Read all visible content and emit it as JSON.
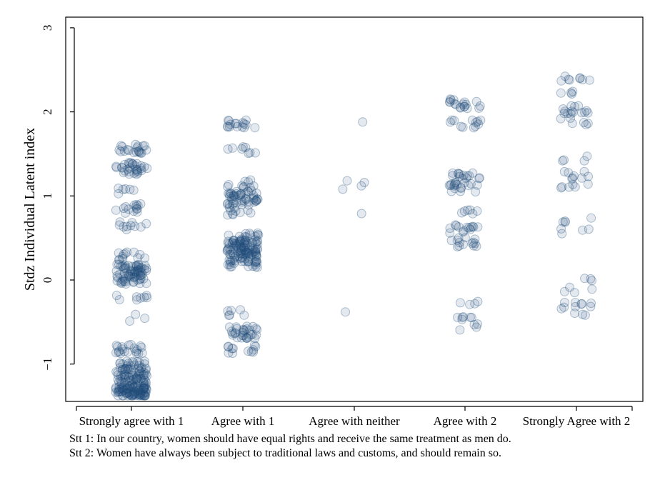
{
  "chart_data": {
    "type": "scatter",
    "subtype": "jittered strip plot",
    "title": "",
    "xlabel": "",
    "ylabel": "Stdz Individual Latent index",
    "categories": [
      "Strongly agree with 1",
      "Agree with 1",
      "Agree with neither",
      "Agree with 2",
      "Strongly Agree with 2"
    ],
    "yticks": [
      -1,
      0,
      1,
      2,
      3
    ],
    "ylim": [
      -1.45,
      3.1
    ],
    "grid": false,
    "legend": "none",
    "marker_color": "#1f4e79",
    "marker_style": "hollow circles, semi-transparent",
    "clusters": [
      {
        "category": "Strongly agree with 1",
        "points": [
          [
            1.55,
            20
          ],
          [
            1.33,
            30
          ],
          [
            1.05,
            6
          ],
          [
            0.85,
            14
          ],
          [
            0.65,
            10
          ],
          [
            0.28,
            12
          ],
          [
            0.07,
            70
          ],
          [
            -0.2,
            8
          ],
          [
            -0.45,
            3
          ],
          [
            -0.82,
            20
          ],
          [
            -1.05,
            45
          ],
          [
            -1.25,
            70
          ],
          [
            -1.33,
            50
          ]
        ]
      },
      {
        "category": "Agree with 1",
        "points": [
          [
            1.85,
            16
          ],
          [
            1.55,
            8
          ],
          [
            1.15,
            10
          ],
          [
            0.98,
            45
          ],
          [
            0.82,
            10
          ],
          [
            0.5,
            20
          ],
          [
            0.34,
            95
          ],
          [
            0.18,
            12
          ],
          [
            -0.38,
            6
          ],
          [
            -0.62,
            30
          ],
          [
            -0.82,
            12
          ]
        ]
      },
      {
        "category": "Agree with neither",
        "points": [
          [
            1.88,
            1
          ],
          [
            1.18,
            1
          ],
          [
            1.16,
            1
          ],
          [
            1.12,
            1
          ],
          [
            1.08,
            1
          ],
          [
            0.79,
            1
          ],
          [
            -0.38,
            1
          ]
        ]
      },
      {
        "category": "Agree with 2",
        "points": [
          [
            2.1,
            18
          ],
          [
            1.85,
            12
          ],
          [
            1.25,
            14
          ],
          [
            1.1,
            18
          ],
          [
            0.8,
            6
          ],
          [
            0.6,
            14
          ],
          [
            0.45,
            14
          ],
          [
            -0.3,
            4
          ],
          [
            -0.45,
            6
          ],
          [
            -0.55,
            4
          ]
        ]
      },
      {
        "category": "Strongly Agree with 2",
        "points": [
          [
            2.4,
            8
          ],
          [
            2.2,
            4
          ],
          [
            2.02,
            14
          ],
          [
            1.88,
            6
          ],
          [
            1.45,
            4
          ],
          [
            1.25,
            8
          ],
          [
            1.1,
            6
          ],
          [
            0.72,
            4
          ],
          [
            0.58,
            4
          ],
          [
            0.0,
            3
          ],
          [
            -0.12,
            4
          ],
          [
            -0.3,
            8
          ],
          [
            -0.38,
            4
          ]
        ]
      }
    ]
  },
  "notes": [
    "Stt 1: In our country, women should have equal rights and receive the same treatment as men do.",
    "Stt 2: Women have always been subject to traditional laws and customs, and should remain so."
  ]
}
